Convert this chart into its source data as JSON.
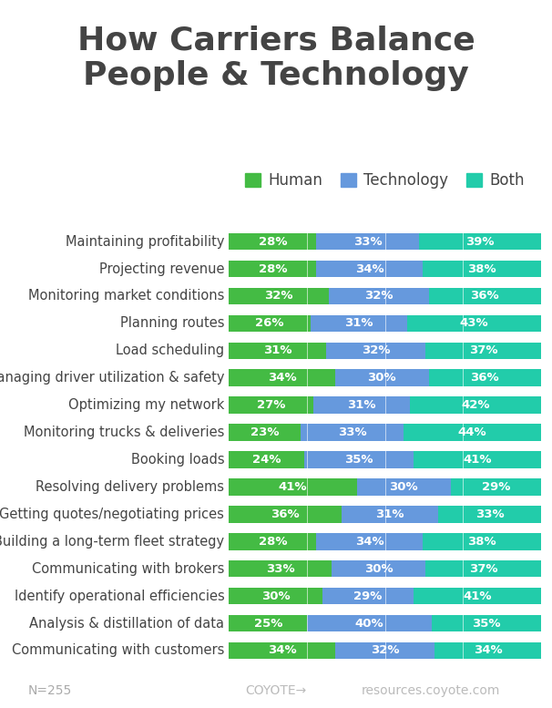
{
  "title_line1": "How Carriers Balance",
  "title_line2": "People & Technology",
  "title_fontsize": 26,
  "title_fontweight": "bold",
  "title_color": "#444444",
  "background_color": "#ffffff",
  "categories": [
    "Maintaining profitability",
    "Projecting revenue",
    "Monitoring market conditions",
    "Planning routes",
    "Load scheduling",
    "Managing driver utilization & safety",
    "Optimizing my network",
    "Monitoring trucks & deliveries",
    "Booking loads",
    "Resolving delivery problems",
    "Getting quotes/negotiating prices",
    "Building a long-term fleet strategy",
    "Communicating with brokers",
    "Identify operational efficiencies",
    "Analysis & distillation of data",
    "Communicating with customers"
  ],
  "human": [
    28,
    28,
    32,
    26,
    31,
    34,
    27,
    23,
    24,
    41,
    36,
    28,
    33,
    30,
    25,
    34
  ],
  "technology": [
    33,
    34,
    32,
    31,
    32,
    30,
    31,
    33,
    35,
    30,
    31,
    34,
    30,
    29,
    40,
    32
  ],
  "both": [
    39,
    38,
    36,
    43,
    37,
    36,
    42,
    44,
    41,
    29,
    33,
    38,
    37,
    41,
    35,
    34
  ],
  "human_color": "#44bb44",
  "technology_color": "#6699dd",
  "both_color": "#22ccaa",
  "bar_height": 0.62,
  "label_fontsize": 9.5,
  "cat_fontsize": 10.5,
  "legend_labels": [
    "Human",
    "Technology",
    "Both"
  ],
  "legend_fontsize": 12,
  "footnote": "N=255",
  "footnote_fontsize": 10,
  "watermark1": "COYOTE→",
  "watermark2": "resources.coyote.com"
}
